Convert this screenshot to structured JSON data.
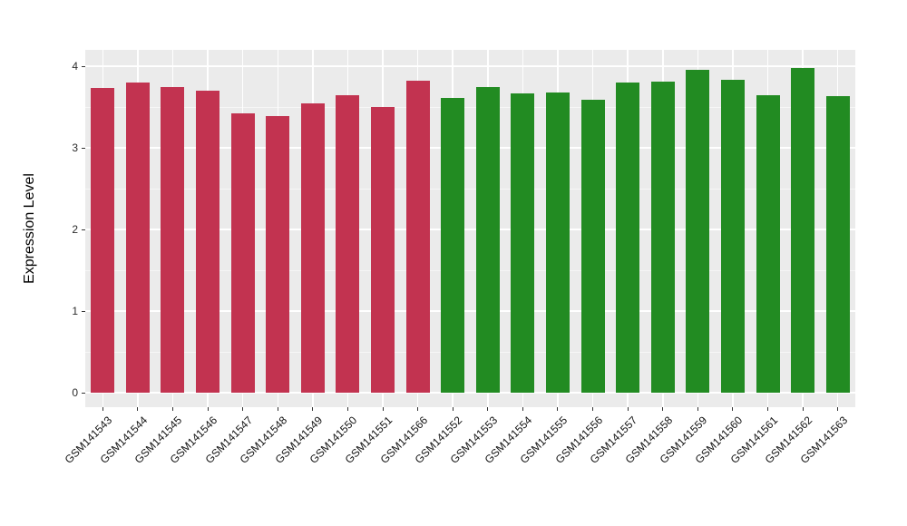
{
  "figure": {
    "background_color": "#FFFFFF",
    "panel_background_color": "#EBEBEB",
    "major_grid_color": "#FFFFFF",
    "minor_grid_color": "#F6F6F6"
  },
  "chart_data": {
    "type": "bar",
    "title": "",
    "xlabel": "",
    "ylabel": "Expression Level",
    "ylim": [
      -0.2,
      4.2
    ],
    "yticks": [
      0,
      1,
      2,
      3,
      4
    ],
    "ytick_labels": [
      "0",
      "1",
      "2",
      "3",
      "4"
    ],
    "minor_yticks": [
      0.5,
      1.5,
      2.5,
      3.5
    ],
    "grid": "on",
    "legend": "none",
    "categories": [
      "GSM141543",
      "GSM141544",
      "GSM141545",
      "GSM141546",
      "GSM141547",
      "GSM141548",
      "GSM141549",
      "GSM141550",
      "GSM141551",
      "GSM141566",
      "GSM141552",
      "GSM141553",
      "GSM141554",
      "GSM141555",
      "GSM141556",
      "GSM141557",
      "GSM141558",
      "GSM141559",
      "GSM141560",
      "GSM141561",
      "GSM141562",
      "GSM141563"
    ],
    "values": [
      3.73,
      3.8,
      3.75,
      3.7,
      3.42,
      3.39,
      3.55,
      3.64,
      3.5,
      3.82,
      3.61,
      3.75,
      3.67,
      3.68,
      3.59,
      3.8,
      3.81,
      3.96,
      3.83,
      3.65,
      3.98,
      3.63
    ],
    "bar_group": [
      "red",
      "red",
      "red",
      "red",
      "red",
      "red",
      "red",
      "red",
      "red",
      "red",
      "green",
      "green",
      "green",
      "green",
      "green",
      "green",
      "green",
      "green",
      "green",
      "green",
      "green",
      "green"
    ],
    "palette": {
      "red": "#C23350",
      "green": "#228B22"
    }
  }
}
